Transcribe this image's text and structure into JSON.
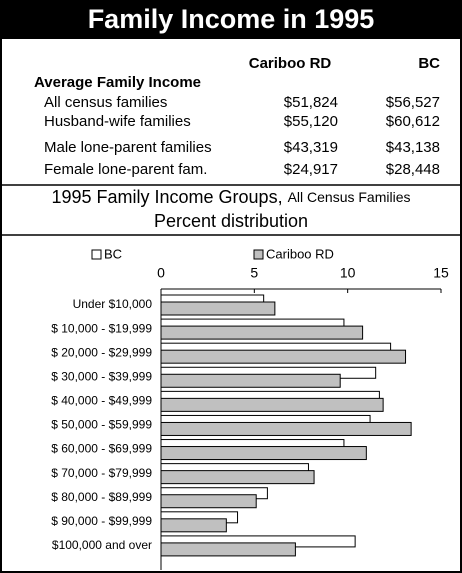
{
  "header": {
    "title": "Family Income in 1995"
  },
  "table": {
    "section": "Average Family Income",
    "columns": [
      "Cariboo RD",
      "BC"
    ],
    "rows": [
      [
        "All census families",
        "$51,824",
        "$56,527"
      ],
      [
        "Husband-wife families",
        "$55,120",
        "$60,612"
      ],
      [
        "Male lone-parent families",
        "$43,319",
        "$43,138"
      ],
      [
        "Female lone-parent fam.",
        "$24,917",
        "$28,448"
      ]
    ]
  },
  "chart_data": {
    "type": "bar",
    "orientation": "horizontal",
    "title": "1995 Family Income Groups,",
    "title_note": "All Census Families",
    "subtitle": "Percent distribution",
    "categories": [
      "Under $10,000",
      "$ 10,000 - $19,999",
      "$ 20,000 - $29,999",
      "$ 30,000 - $39,999",
      "$ 40,000 - $49,999",
      "$ 50,000 - $59,999",
      "$ 60,000 - $69,999",
      "$ 70,000 - $79,999",
      "$ 80,000 - $89,999",
      "$ 90,000 - $99,999",
      "$100,000 and over"
    ],
    "series": [
      {
        "name": "BC",
        "color": "#ffffff",
        "values": [
          5.5,
          9.8,
          12.3,
          11.5,
          11.7,
          11.2,
          9.8,
          7.9,
          5.7,
          4.1,
          10.4
        ]
      },
      {
        "name": "Cariboo RD",
        "color": "#c0c0c0",
        "values": [
          6.1,
          10.8,
          13.1,
          9.6,
          11.9,
          13.4,
          11.0,
          8.2,
          5.1,
          3.5,
          7.2
        ]
      }
    ],
    "xlim": [
      0,
      15
    ],
    "xticks": [
      0,
      5,
      10,
      15
    ],
    "legend": "top"
  }
}
